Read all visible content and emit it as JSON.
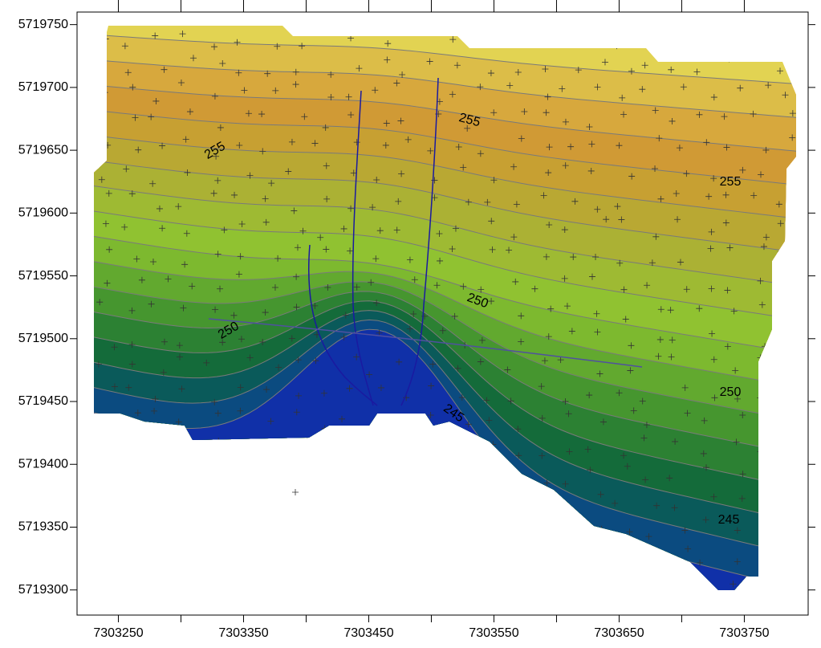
{
  "chart_data": {
    "type": "contour",
    "xlim": [
      7303217,
      7303801
    ],
    "ylim": [
      5719280,
      5719760
    ],
    "xticks": [
      7303250,
      7303350,
      7303450,
      7303550,
      7303650,
      7303750
    ],
    "xminorticks": [
      7303300,
      7303400,
      7303500,
      7303600,
      7303700
    ],
    "yticks": [
      5719300,
      5719350,
      5719400,
      5719450,
      5719500,
      5719550,
      5719600,
      5719650,
      5719700,
      5719750
    ],
    "contour_labels": [
      255,
      255,
      255,
      250,
      250,
      250,
      245,
      245
    ]
  }
}
